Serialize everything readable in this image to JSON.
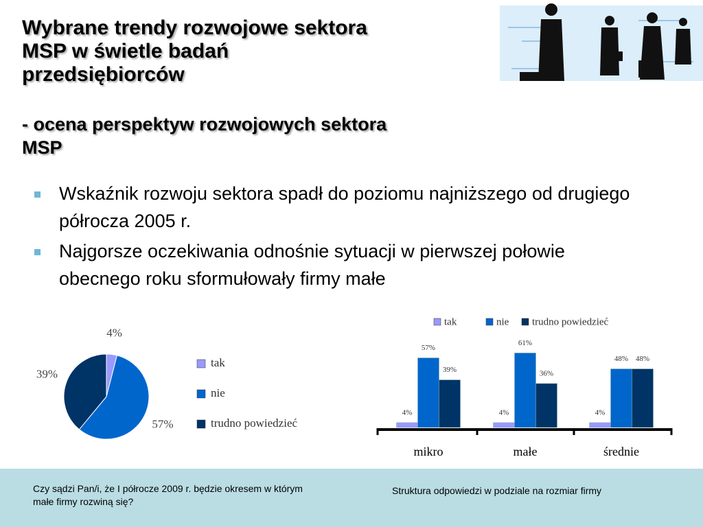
{
  "title": [
    "Wybrane trendy rozwojowe sektora",
    "MSP w świetle badań",
    "przedsiębiorców"
  ],
  "subtitle": [
    "- ocena perspektyw rozwojowych sektora",
    "MSP"
  ],
  "bullets": [
    "Wskaźnik rozwoju sektora spadł do poziomu najniższego od drugiego półrocza 2005 r.",
    "Najgorsze oczekiwania odnośnie sytuacji w pierwszej połowie obecnego roku sformułowały firmy małe"
  ],
  "captions": [
    "Czy sądzi Pan/i, że I półrocze 2009 r. będzie okresem w którym małe firmy rozwiną się?",
    "Struktura odpowiedzi w podziale na rozmiar firmy"
  ],
  "chart_data": [
    {
      "type": "pie",
      "categories": [
        "tak",
        "nie",
        "trudno powiedzieć"
      ],
      "values": [
        4,
        57,
        39
      ],
      "value_labels": [
        "4%",
        "57%",
        "39%"
      ],
      "colors": [
        "#9999ff",
        "#0066cc",
        "#003366"
      ]
    },
    {
      "type": "bar",
      "categories": [
        "mikro",
        "małe",
        "średnie"
      ],
      "series": [
        {
          "name": "tak",
          "color": "#9999ff",
          "values": [
            4,
            4,
            4
          ],
          "value_labels": [
            "4%",
            "4%",
            "4%"
          ]
        },
        {
          "name": "nie",
          "color": "#0066cc",
          "values": [
            57,
            61,
            48
          ],
          "value_labels": [
            "57%",
            "61%",
            "48%"
          ]
        },
        {
          "name": "trudno powiedzieć",
          "color": "#003366",
          "values": [
            39,
            36,
            48
          ],
          "value_labels": [
            "39%",
            "36%",
            "48%"
          ]
        }
      ]
    }
  ]
}
